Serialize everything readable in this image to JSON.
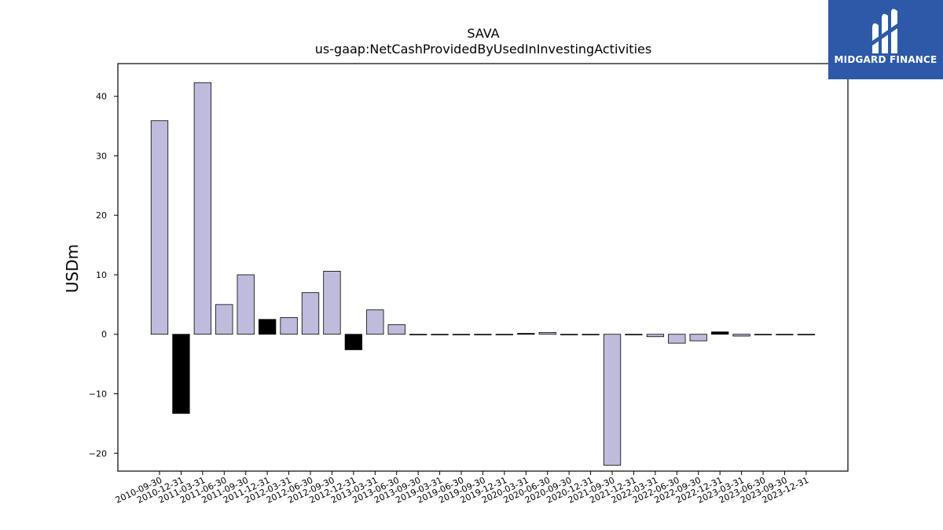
{
  "brand": {
    "name": "MIDGARD FINANCE",
    "background": "#2d59a8"
  },
  "colors": {
    "positive": "#bfbbdc",
    "negative": "#000000",
    "edge": "#000000"
  },
  "chart_data": {
    "type": "bar",
    "title": "SAVA",
    "subtitle": "us-gaap:NetCashProvidedByUsedInInvestingActivities",
    "xlabel": "",
    "ylabel": "USDm",
    "ylim": [
      -23,
      45.5
    ],
    "yticks": [
      -20,
      -10,
      0,
      10,
      20,
      30,
      40
    ],
    "grid": false,
    "categories": [
      "2010-09-30",
      "2010-12-31",
      "2011-03-31",
      "2011-06-30",
      "2011-09-30",
      "2011-12-31",
      "2012-03-31",
      "2012-06-30",
      "2012-09-30",
      "2012-12-31",
      "2013-03-31",
      "2013-06-30",
      "2013-09-30",
      "2019-03-31",
      "2019-06-30",
      "2019-09-30",
      "2019-12-31",
      "2020-03-31",
      "2020-06-30",
      "2020-09-30",
      "2020-12-31",
      "2021-09-30",
      "2021-12-31",
      "2022-03-31",
      "2022-06-30",
      "2022-09-30",
      "2022-12-31",
      "2023-03-31",
      "2023-06-30",
      "2023-09-30",
      "2023-12-31"
    ],
    "values": [
      35.9,
      -13.3,
      42.3,
      5.0,
      10.0,
      2.5,
      2.8,
      7.0,
      10.6,
      -2.6,
      4.1,
      1.6,
      -0.1,
      -0.1,
      -0.1,
      -0.1,
      -0.1,
      0.15,
      0.3,
      -0.1,
      -0.1,
      -22.0,
      -0.1,
      -0.4,
      -1.5,
      -1.1,
      0.4,
      -0.3,
      -0.1,
      -0.1,
      -0.1
    ],
    "series_colors": [
      "positive",
      "negative",
      "positive",
      "positive",
      "positive",
      "negative",
      "positive",
      "positive",
      "positive",
      "negative",
      "positive",
      "positive",
      "positive",
      "positive",
      "positive",
      "positive",
      "positive",
      "negative",
      "positive",
      "positive",
      "positive",
      "positive",
      "positive",
      "positive",
      "positive",
      "positive",
      "negative",
      "positive",
      "positive",
      "positive",
      "positive"
    ]
  }
}
